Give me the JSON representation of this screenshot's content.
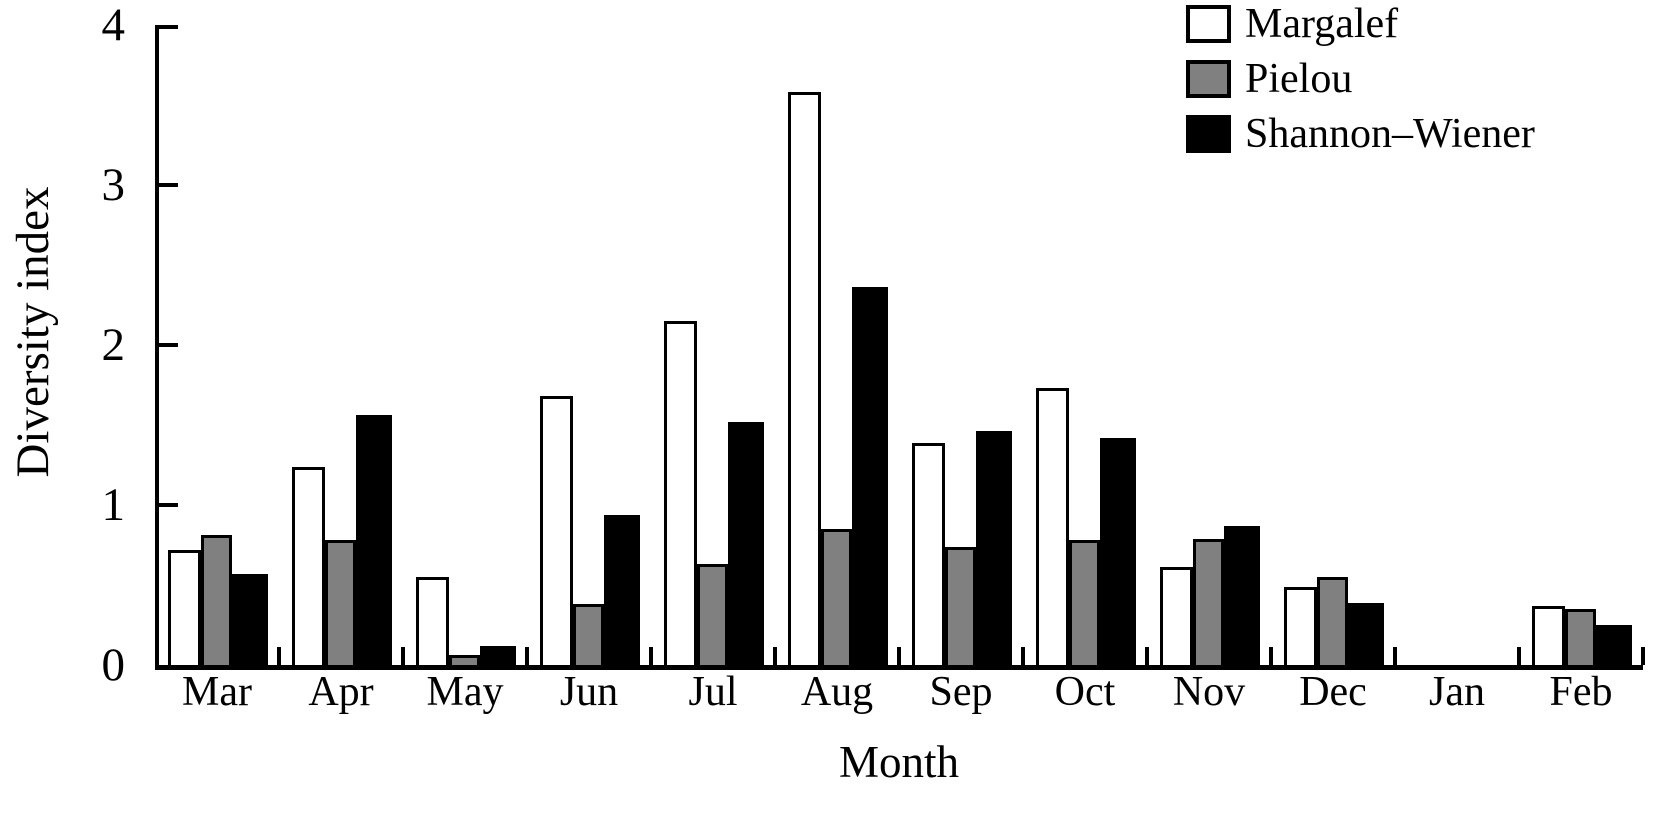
{
  "chart_data": {
    "type": "bar",
    "title": "",
    "xlabel": "Month",
    "ylabel": "Diversity index",
    "ylim": [
      0,
      4
    ],
    "yticks": [
      0,
      1,
      2,
      3,
      4
    ],
    "grid": false,
    "legend_position": "top-right",
    "categories": [
      "Mar",
      "Apr",
      "May",
      "Jun",
      "Jul",
      "Aug",
      "Sep",
      "Oct",
      "Nov",
      "Dec",
      "Jan",
      "Feb"
    ],
    "series": [
      {
        "name": "Margalef",
        "color": "#ffffff",
        "values": [
          0.72,
          1.24,
          0.55,
          1.68,
          2.15,
          3.58,
          1.39,
          1.73,
          0.61,
          0.49,
          0,
          0.37
        ]
      },
      {
        "name": "Pielou",
        "color": "#808080",
        "values": [
          0.81,
          0.78,
          0.06,
          0.38,
          0.63,
          0.85,
          0.74,
          0.78,
          0.79,
          0.55,
          0,
          0.35
        ]
      },
      {
        "name": "Shannon–Wiener",
        "color": "#000000",
        "values": [
          0.57,
          1.56,
          0.12,
          0.94,
          1.52,
          2.36,
          1.46,
          1.42,
          0.87,
          0.39,
          0,
          0.25
        ]
      }
    ]
  },
  "axis_color": "#000000",
  "background_color": "#ffffff"
}
